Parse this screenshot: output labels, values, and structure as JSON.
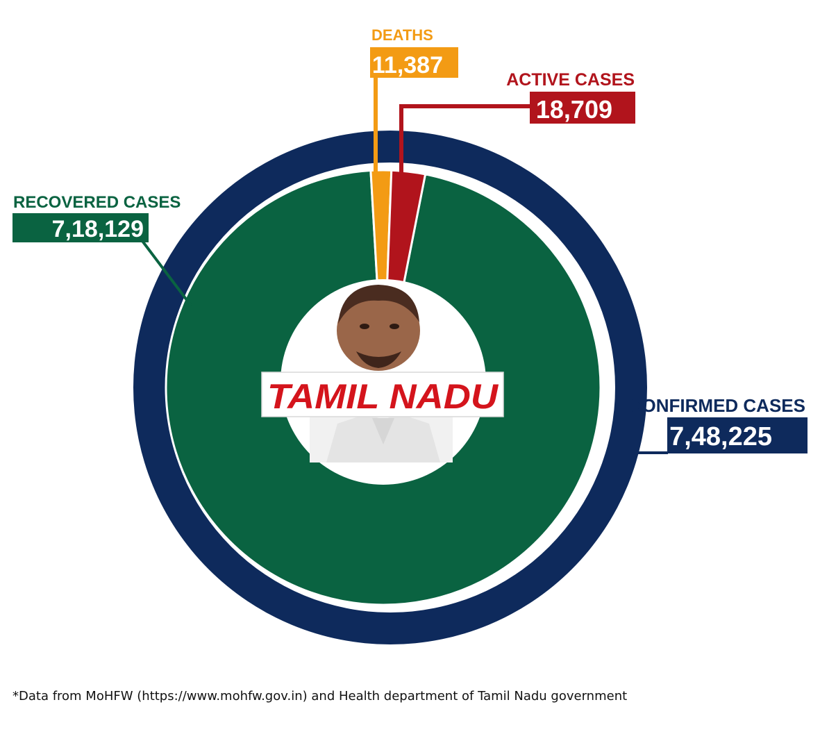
{
  "chart_data": {
    "type": "pie",
    "center_label": "TAMIL NADU",
    "outer_ring": {
      "label": "CONFIRMED CASES",
      "value_text": "7,48,225",
      "value": 748225,
      "color": "#0e2a5c"
    },
    "slices": [
      {
        "label": "RECOVERED CASES",
        "value_text": "7,18,129",
        "value": 718129,
        "color": "#0a6341"
      },
      {
        "label": "DEATHS",
        "value_text": "11,387",
        "value": 11387,
        "color": "#f39b14"
      },
      {
        "label": "ACTIVE CASES",
        "value_text": "18,709",
        "value": 18709,
        "color": "#b1141c"
      }
    ],
    "legend": "none"
  },
  "footnote": "*Data from MoHFW (https://www.mohfw.gov.in) and Health department of Tamil Nadu government",
  "colors": {
    "background": "#ffffff",
    "center_banner_text": "#d4141c"
  },
  "icons": {
    "center_image": "portrait-illustration"
  }
}
